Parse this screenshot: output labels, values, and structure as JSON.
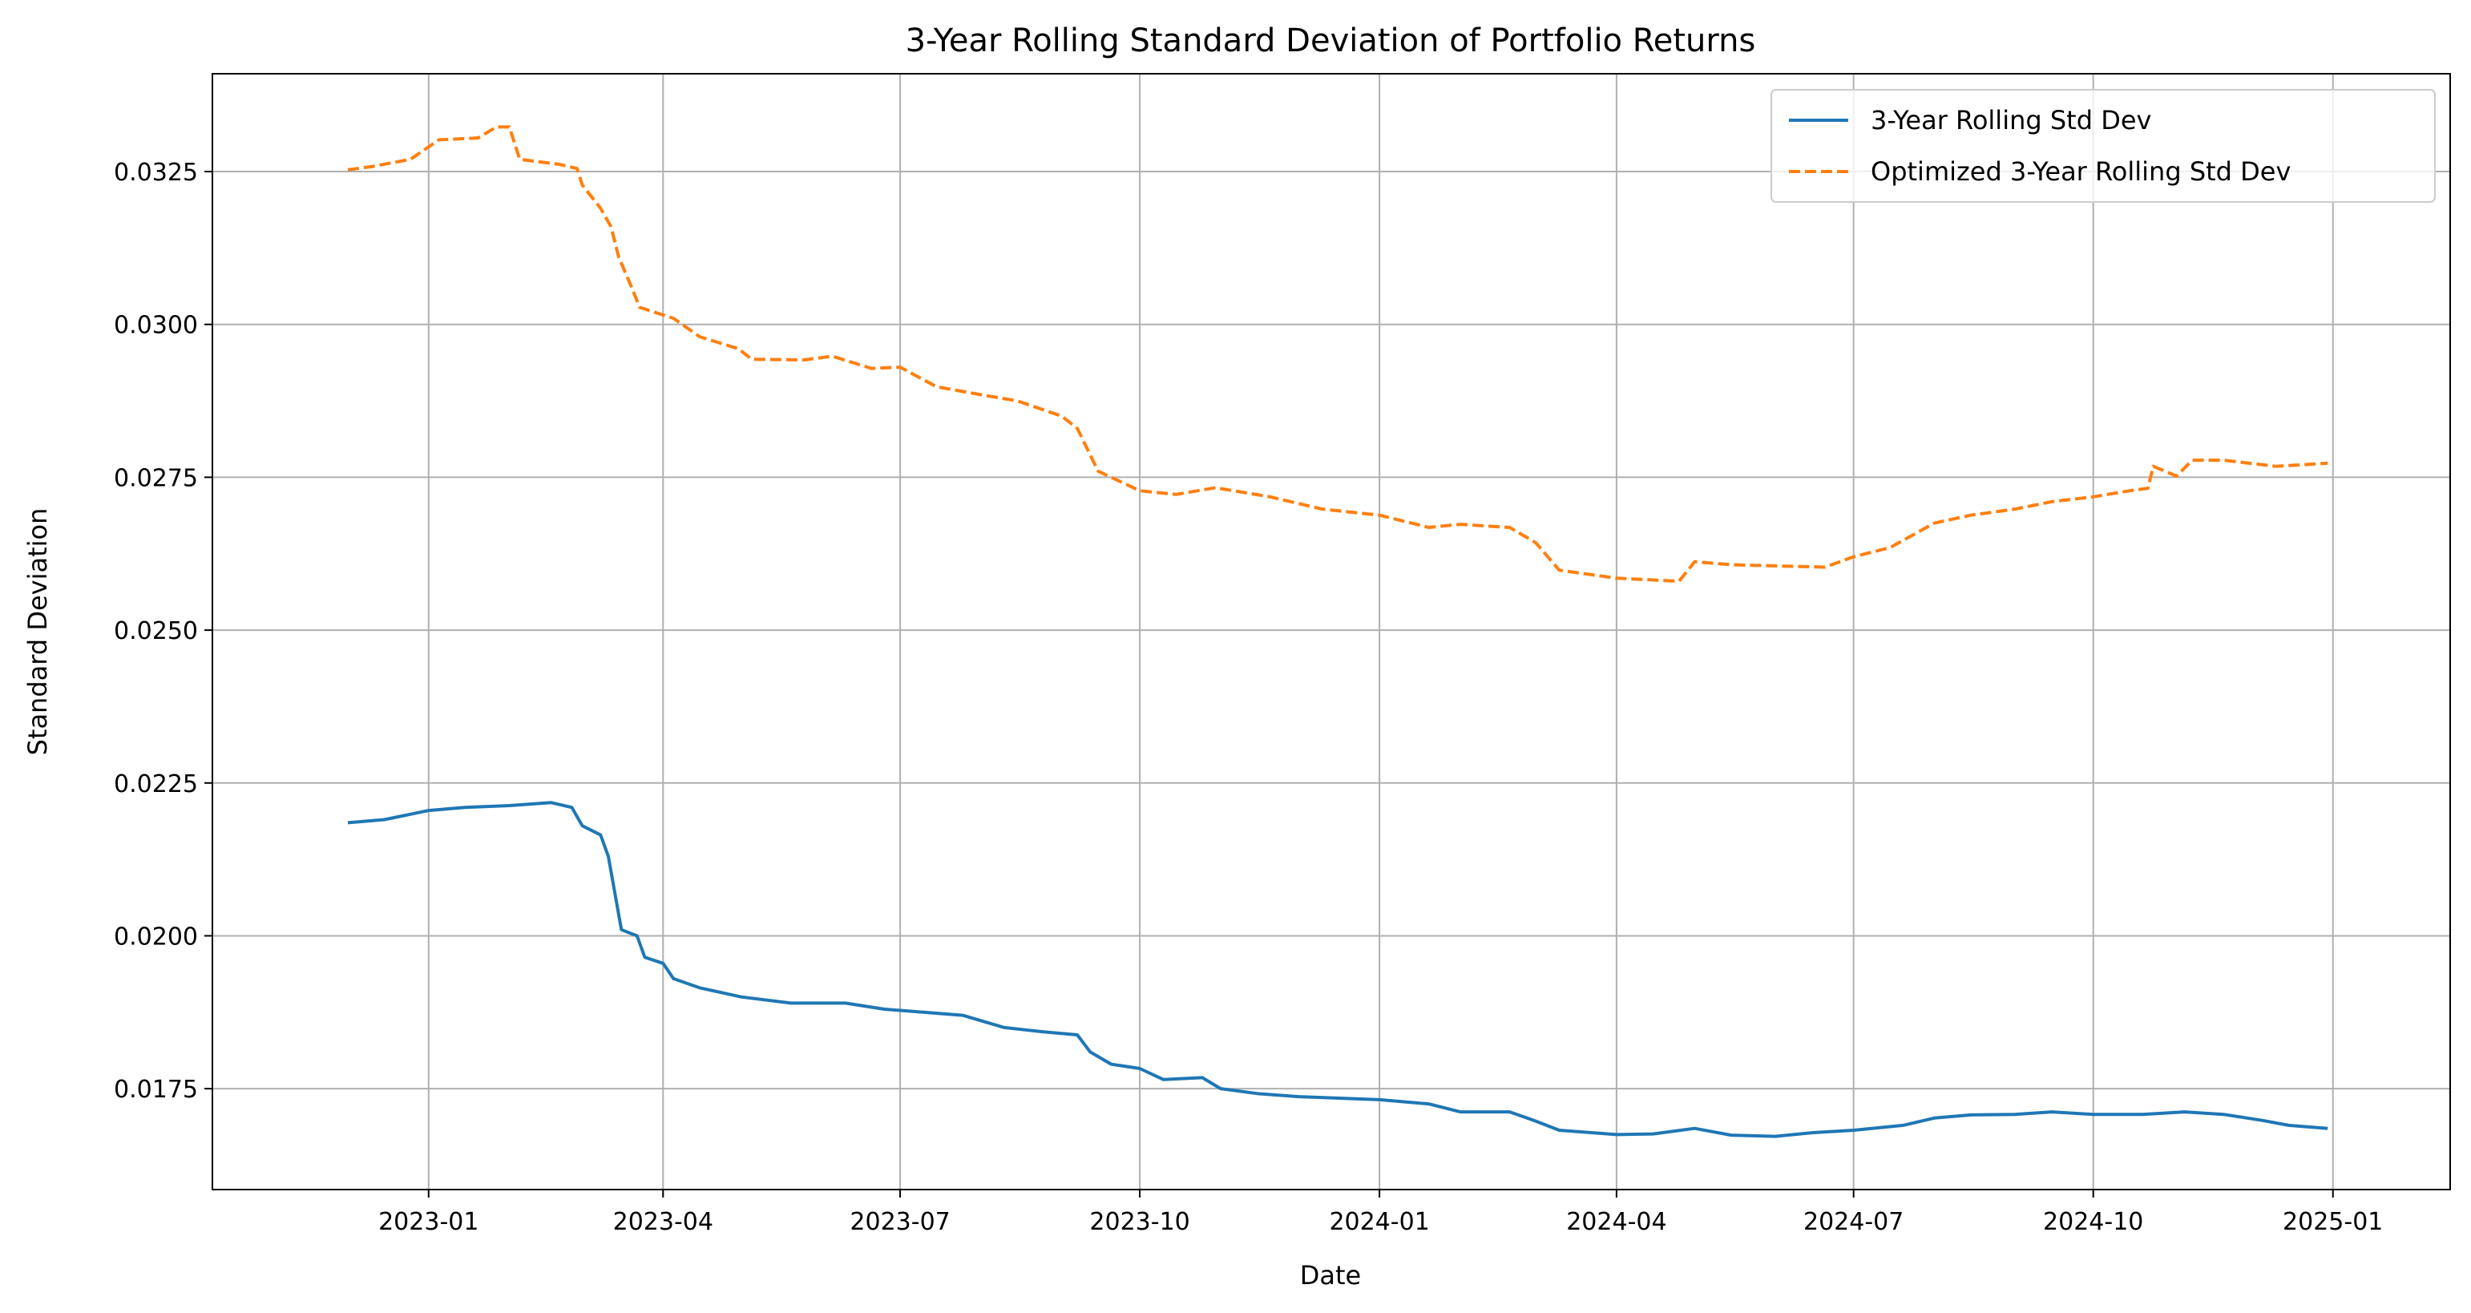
{
  "chart_data": {
    "type": "line",
    "title": "3-Year Rolling Standard Deviation of Portfolio Returns",
    "xlabel": "Date",
    "ylabel": "Standard Deviation",
    "xlim": [
      "2022-10-10",
      "2025-02-15"
    ],
    "ylim": [
      0.01585,
      0.0341
    ],
    "x_ticks": [
      "2023-01",
      "2023-04",
      "2023-07",
      "2023-10",
      "2024-01",
      "2024-04",
      "2024-07",
      "2024-10",
      "2025-01"
    ],
    "x_tick_dates": [
      "2023-01-01",
      "2023-04-01",
      "2023-07-01",
      "2023-10-01",
      "2024-01-01",
      "2024-04-01",
      "2024-07-01",
      "2024-10-01",
      "2025-01-01"
    ],
    "y_ticks": [
      0.0175,
      0.02,
      0.0225,
      0.025,
      0.0275,
      0.03,
      0.0325
    ],
    "y_tick_labels": [
      "0.0175",
      "0.0200",
      "0.0225",
      "0.0250",
      "0.0275",
      "0.0300",
      "0.0325"
    ],
    "grid": true,
    "legend_position": "top-right",
    "series": [
      {
        "name": "3-Year Rolling Std Dev",
        "color": "#1f77b4",
        "style": "solid",
        "points": [
          [
            "2022-12-01",
            0.02185
          ],
          [
            "2022-12-15",
            0.0219
          ],
          [
            "2023-01-01",
            0.02205
          ],
          [
            "2023-01-15",
            0.0221
          ],
          [
            "2023-02-01",
            0.02213
          ],
          [
            "2023-02-17",
            0.02218
          ],
          [
            "2023-02-25",
            0.0221
          ],
          [
            "2023-03-01",
            0.0218
          ],
          [
            "2023-03-08",
            0.02165
          ],
          [
            "2023-03-11",
            0.0213
          ],
          [
            "2023-03-16",
            0.0201
          ],
          [
            "2023-03-22",
            0.02
          ],
          [
            "2023-03-25",
            0.01965
          ],
          [
            "2023-04-01",
            0.01955
          ],
          [
            "2023-04-05",
            0.0193
          ],
          [
            "2023-04-15",
            0.01915
          ],
          [
            "2023-05-01",
            0.019
          ],
          [
            "2023-05-20",
            0.0189
          ],
          [
            "2023-06-10",
            0.0189
          ],
          [
            "2023-06-25",
            0.0188
          ],
          [
            "2023-07-10",
            0.01875
          ],
          [
            "2023-07-25",
            0.0187
          ],
          [
            "2023-08-10",
            0.0185
          ],
          [
            "2023-08-25",
            0.01843
          ],
          [
            "2023-09-07",
            0.01838
          ],
          [
            "2023-09-12",
            0.0181
          ],
          [
            "2023-09-20",
            0.0179
          ],
          [
            "2023-10-01",
            0.01783
          ],
          [
            "2023-10-10",
            0.01765
          ],
          [
            "2023-10-25",
            0.01768
          ],
          [
            "2023-11-01",
            0.0175
          ],
          [
            "2023-11-15",
            0.01742
          ],
          [
            "2023-12-01",
            0.01737
          ],
          [
            "2024-01-01",
            0.01732
          ],
          [
            "2024-01-20",
            0.01725
          ],
          [
            "2024-02-01",
            0.01712
          ],
          [
            "2024-02-20",
            0.01712
          ],
          [
            "2024-03-01",
            0.01697
          ],
          [
            "2024-03-10",
            0.01682
          ],
          [
            "2024-04-01",
            0.01675
          ],
          [
            "2024-04-15",
            0.01676
          ],
          [
            "2024-05-01",
            0.01685
          ],
          [
            "2024-05-15",
            0.01674
          ],
          [
            "2024-06-01",
            0.01672
          ],
          [
            "2024-06-15",
            0.01678
          ],
          [
            "2024-07-01",
            0.01682
          ],
          [
            "2024-07-20",
            0.0169
          ],
          [
            "2024-08-01",
            0.01702
          ],
          [
            "2024-08-15",
            0.01707
          ],
          [
            "2024-09-01",
            0.01708
          ],
          [
            "2024-09-15",
            0.01712
          ],
          [
            "2024-10-01",
            0.01708
          ],
          [
            "2024-10-20",
            0.01708
          ],
          [
            "2024-11-05",
            0.01712
          ],
          [
            "2024-11-20",
            0.01708
          ],
          [
            "2024-12-05",
            0.01698
          ],
          [
            "2024-12-15",
            0.0169
          ],
          [
            "2024-12-30",
            0.01685
          ]
        ]
      },
      {
        "name": "Optimized 3-Year Rolling Std Dev",
        "color": "#ff7f0e",
        "style": "dashed",
        "points": [
          [
            "2022-12-01",
            0.03253
          ],
          [
            "2022-12-10",
            0.03258
          ],
          [
            "2022-12-25",
            0.0327
          ],
          [
            "2023-01-05",
            0.03302
          ],
          [
            "2023-01-20",
            0.03305
          ],
          [
            "2023-01-27",
            0.03323
          ],
          [
            "2023-02-01",
            0.03323
          ],
          [
            "2023-02-05",
            0.0327
          ],
          [
            "2023-02-20",
            0.03262
          ],
          [
            "2023-02-27",
            0.03255
          ],
          [
            "2023-03-01",
            0.03228
          ],
          [
            "2023-03-08",
            0.0319
          ],
          [
            "2023-03-12",
            0.0316
          ],
          [
            "2023-03-15",
            0.0311
          ],
          [
            "2023-03-20",
            0.0306
          ],
          [
            "2023-03-23",
            0.03028
          ],
          [
            "2023-04-05",
            0.0301
          ],
          [
            "2023-04-15",
            0.0298
          ],
          [
            "2023-04-30",
            0.0296
          ],
          [
            "2023-05-05",
            0.02943
          ],
          [
            "2023-05-25",
            0.02942
          ],
          [
            "2023-06-05",
            0.02948
          ],
          [
            "2023-06-20",
            0.02928
          ],
          [
            "2023-07-01",
            0.0293
          ],
          [
            "2023-07-15",
            0.02898
          ],
          [
            "2023-08-01",
            0.02885
          ],
          [
            "2023-08-15",
            0.02875
          ],
          [
            "2023-09-01",
            0.0285
          ],
          [
            "2023-09-07",
            0.0283
          ],
          [
            "2023-09-15",
            0.0276
          ],
          [
            "2023-10-01",
            0.02728
          ],
          [
            "2023-10-15",
            0.02722
          ],
          [
            "2023-10-30",
            0.02733
          ],
          [
            "2023-11-20",
            0.02718
          ],
          [
            "2023-12-10",
            0.02698
          ],
          [
            "2024-01-01",
            0.02688
          ],
          [
            "2024-01-20",
            0.02668
          ],
          [
            "2024-02-01",
            0.02673
          ],
          [
            "2024-02-20",
            0.02668
          ],
          [
            "2024-03-01",
            0.02643
          ],
          [
            "2024-03-10",
            0.02598
          ],
          [
            "2024-04-01",
            0.02585
          ],
          [
            "2024-04-25",
            0.0258
          ],
          [
            "2024-05-01",
            0.02612
          ],
          [
            "2024-05-15",
            0.02607
          ],
          [
            "2024-06-01",
            0.02605
          ],
          [
            "2024-06-20",
            0.02603
          ],
          [
            "2024-07-01",
            0.0262
          ],
          [
            "2024-07-15",
            0.02635
          ],
          [
            "2024-08-01",
            0.02675
          ],
          [
            "2024-08-15",
            0.02688
          ],
          [
            "2024-09-01",
            0.02698
          ],
          [
            "2024-09-15",
            0.0271
          ],
          [
            "2024-10-01",
            0.02718
          ],
          [
            "2024-10-15",
            0.02728
          ],
          [
            "2024-10-22",
            0.02732
          ],
          [
            "2024-10-24",
            0.02768
          ],
          [
            "2024-11-02",
            0.02752
          ],
          [
            "2024-11-08",
            0.02778
          ],
          [
            "2024-11-20",
            0.02778
          ],
          [
            "2024-12-10",
            0.02768
          ],
          [
            "2024-12-30",
            0.02773
          ]
        ]
      }
    ]
  }
}
